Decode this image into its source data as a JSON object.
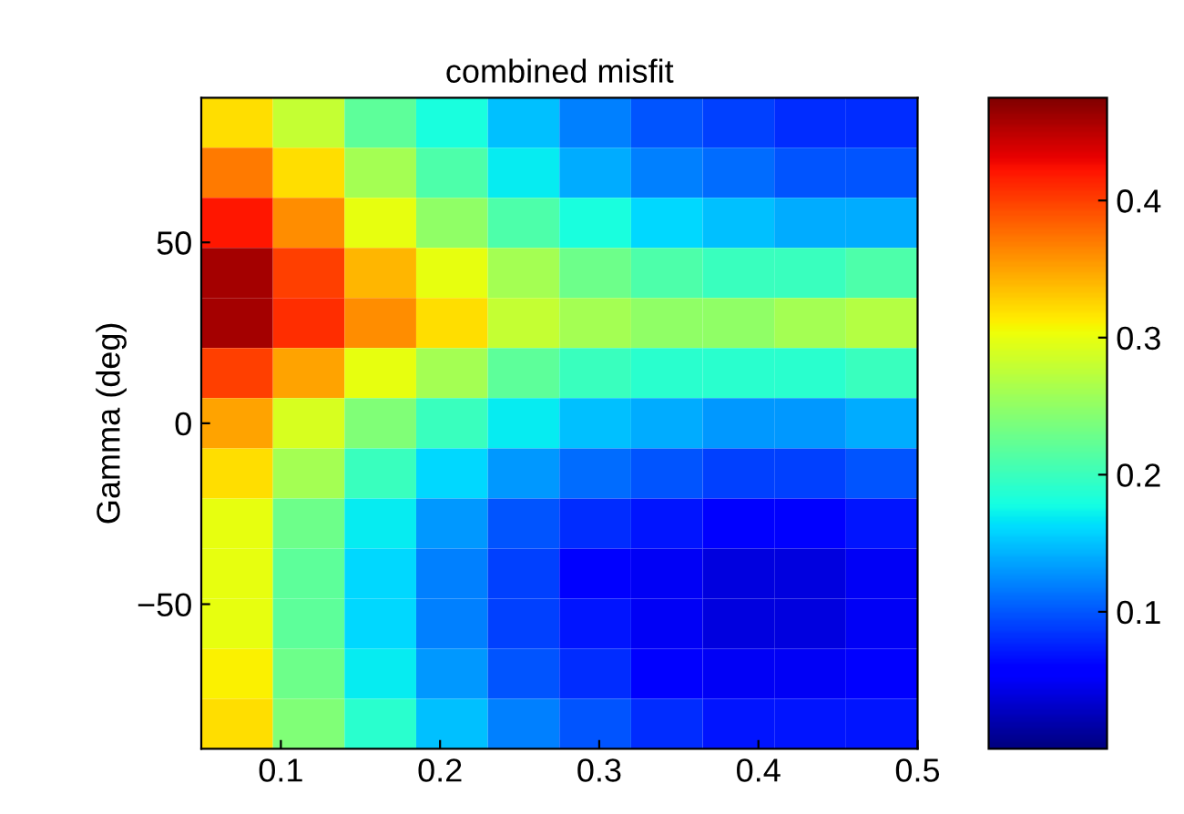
{
  "chart_data": {
    "type": "heatmap",
    "title": "combined misfit",
    "ylabel": "Gamma (deg)",
    "xlim": [
      0.05,
      0.5
    ],
    "ylim": [
      -90,
      90
    ],
    "xticks": [
      0.1,
      0.2,
      0.3,
      0.4,
      0.5
    ],
    "yticks": [
      {
        "value": -50,
        "label": "−50"
      },
      0,
      50
    ],
    "clim": [
      0,
      0.475
    ],
    "cticks": [
      0.1,
      0.2,
      0.3,
      0.4
    ],
    "cells": [
      [
        0.32,
        0.28,
        0.22,
        0.18,
        0.15,
        0.12,
        0.1,
        0.09,
        0.08,
        0.08
      ],
      [
        0.37,
        0.32,
        0.26,
        0.21,
        0.17,
        0.14,
        0.12,
        0.11,
        0.1,
        0.1
      ],
      [
        0.42,
        0.36,
        0.3,
        0.25,
        0.21,
        0.18,
        0.16,
        0.15,
        0.14,
        0.14
      ],
      [
        0.46,
        0.4,
        0.34,
        0.3,
        0.26,
        0.23,
        0.21,
        0.2,
        0.2,
        0.21
      ],
      [
        0.46,
        0.41,
        0.36,
        0.32,
        0.28,
        0.26,
        0.25,
        0.25,
        0.26,
        0.27
      ],
      [
        0.4,
        0.35,
        0.3,
        0.26,
        0.22,
        0.2,
        0.19,
        0.19,
        0.19,
        0.2
      ],
      [
        0.35,
        0.29,
        0.24,
        0.2,
        0.17,
        0.15,
        0.14,
        0.13,
        0.13,
        0.14
      ],
      [
        0.32,
        0.26,
        0.2,
        0.16,
        0.13,
        0.11,
        0.1,
        0.09,
        0.09,
        0.1
      ],
      [
        0.3,
        0.23,
        0.17,
        0.13,
        0.1,
        0.08,
        0.07,
        0.06,
        0.06,
        0.07
      ],
      [
        0.3,
        0.22,
        0.16,
        0.12,
        0.09,
        0.06,
        0.05,
        0.04,
        0.04,
        0.05
      ],
      [
        0.3,
        0.22,
        0.16,
        0.12,
        0.09,
        0.07,
        0.05,
        0.04,
        0.04,
        0.05
      ],
      [
        0.31,
        0.23,
        0.17,
        0.13,
        0.1,
        0.08,
        0.06,
        0.05,
        0.05,
        0.06
      ],
      [
        0.32,
        0.24,
        0.19,
        0.15,
        0.12,
        0.1,
        0.08,
        0.07,
        0.07,
        0.07
      ]
    ]
  }
}
